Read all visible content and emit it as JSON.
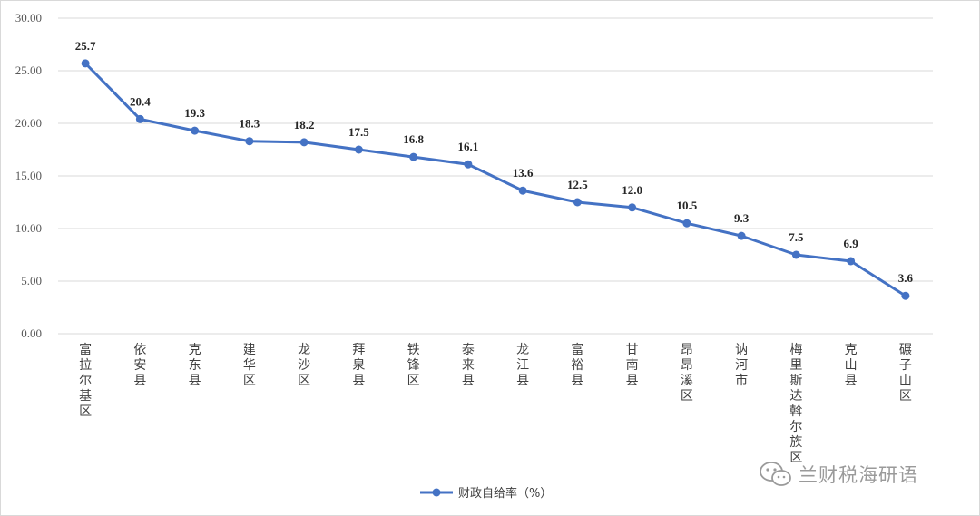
{
  "chart_data": {
    "type": "line",
    "title": "",
    "xlabel": "",
    "ylabel": "",
    "categories": [
      "富拉尔基区",
      "依安县",
      "克东县",
      "建华区",
      "龙沙区",
      "拜泉县",
      "铁锋区",
      "泰来县",
      "龙江县",
      "富裕县",
      "甘南县",
      "昂昂溪区",
      "讷河市",
      "梅里斯达斡尔族区",
      "克山县",
      "碾子山区"
    ],
    "series": [
      {
        "name": "财政自给率（%）",
        "values": [
          25.7,
          20.4,
          19.3,
          18.3,
          18.2,
          17.5,
          16.8,
          16.1,
          13.6,
          12.5,
          12.0,
          10.5,
          9.3,
          7.5,
          6.9,
          3.6
        ],
        "data_labels": [
          "25.7",
          "20.4",
          "19.3",
          "18.3",
          "18.2",
          "17.5",
          "16.8",
          "16.1",
          "13.6",
          "12.5",
          "12.0",
          "10.5",
          "9.3",
          "7.5",
          "6.9",
          "3.6"
        ]
      }
    ],
    "ylim": [
      0,
      30
    ],
    "yticks": [
      "0.00",
      "5.00",
      "10.00",
      "15.00",
      "20.00",
      "25.00",
      "30.00"
    ],
    "grid": true,
    "legend_position": "bottom",
    "series_color": "#4472c4",
    "grid_color": "#d9d9d9"
  },
  "watermark": {
    "text": "兰财税海研语",
    "icon": "wechat-icon"
  }
}
